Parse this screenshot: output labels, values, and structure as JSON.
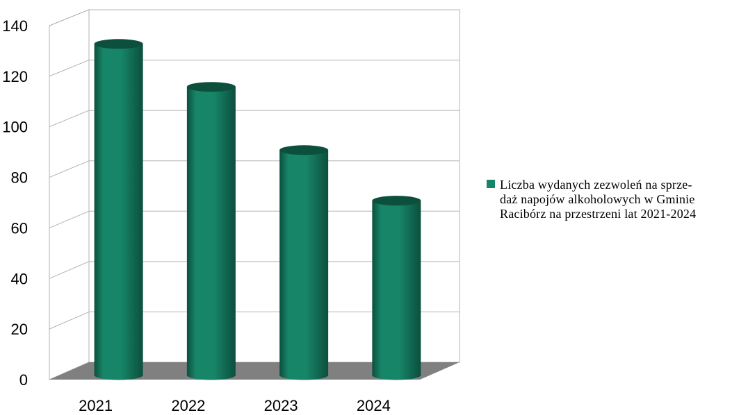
{
  "colors": {
    "bar": "#178567",
    "bar_dark": "#0c4f3d",
    "floor": "#808080",
    "grid": "#b3b3b3"
  },
  "chart_data": {
    "type": "bar",
    "categories": [
      "2021",
      "2022",
      "2023",
      "2024"
    ],
    "series": [
      {
        "name": "Liczba wydanych zezwoleń na sprzedaż napojów alkoholowych w Gminie Racibórz na przestrzeni lat 2021-2024",
        "values": [
          131,
          114,
          89,
          69
        ]
      }
    ],
    "y_ticks": [
      "0",
      "20",
      "40",
      "60",
      "80",
      "100",
      "120",
      "140"
    ],
    "ylim": [
      0,
      140
    ],
    "title": "",
    "xlabel": "",
    "ylabel": "",
    "grid": true,
    "legend_position": "right",
    "style": "3d-cylinder"
  },
  "legend": {
    "text": "Liczba wydanych zezwoleń na sprze-\ndaż napojów alkoholowych w Gminie\nRacibórz na przestrzeni lat 2021-2024"
  }
}
